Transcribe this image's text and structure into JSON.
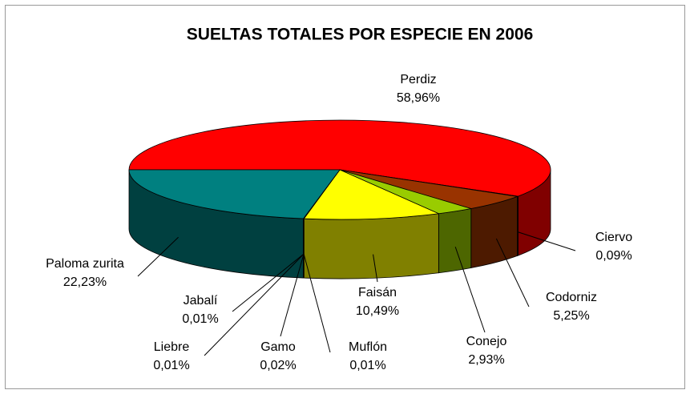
{
  "chart_data": {
    "type": "pie3d",
    "title": "SUELTAS TOTALES POR ESPECIE EN 2006",
    "categories": [
      "Perdiz",
      "Ciervo",
      "Codorniz",
      "Conejo",
      "Faisán",
      "Muflón",
      "Gamo",
      "Liebre",
      "Jabalí",
      "Paloma zurita"
    ],
    "values": [
      58.96,
      0.09,
      5.25,
      2.93,
      10.49,
      0.01,
      0.02,
      0.01,
      0.01,
      22.23
    ],
    "value_labels": [
      "58,96%",
      "0,09%",
      "5,25%",
      "2,93%",
      "10,49%",
      "0,01%",
      "0,02%",
      "0,01%",
      "0,01%",
      "22,23%"
    ],
    "colors": [
      "#ff0000",
      "#333399",
      "#993300",
      "#99cc00",
      "#ffff00",
      "#cc99ff",
      "#ff9900",
      "#99ccff",
      "#ff99cc",
      "#008080"
    ]
  }
}
